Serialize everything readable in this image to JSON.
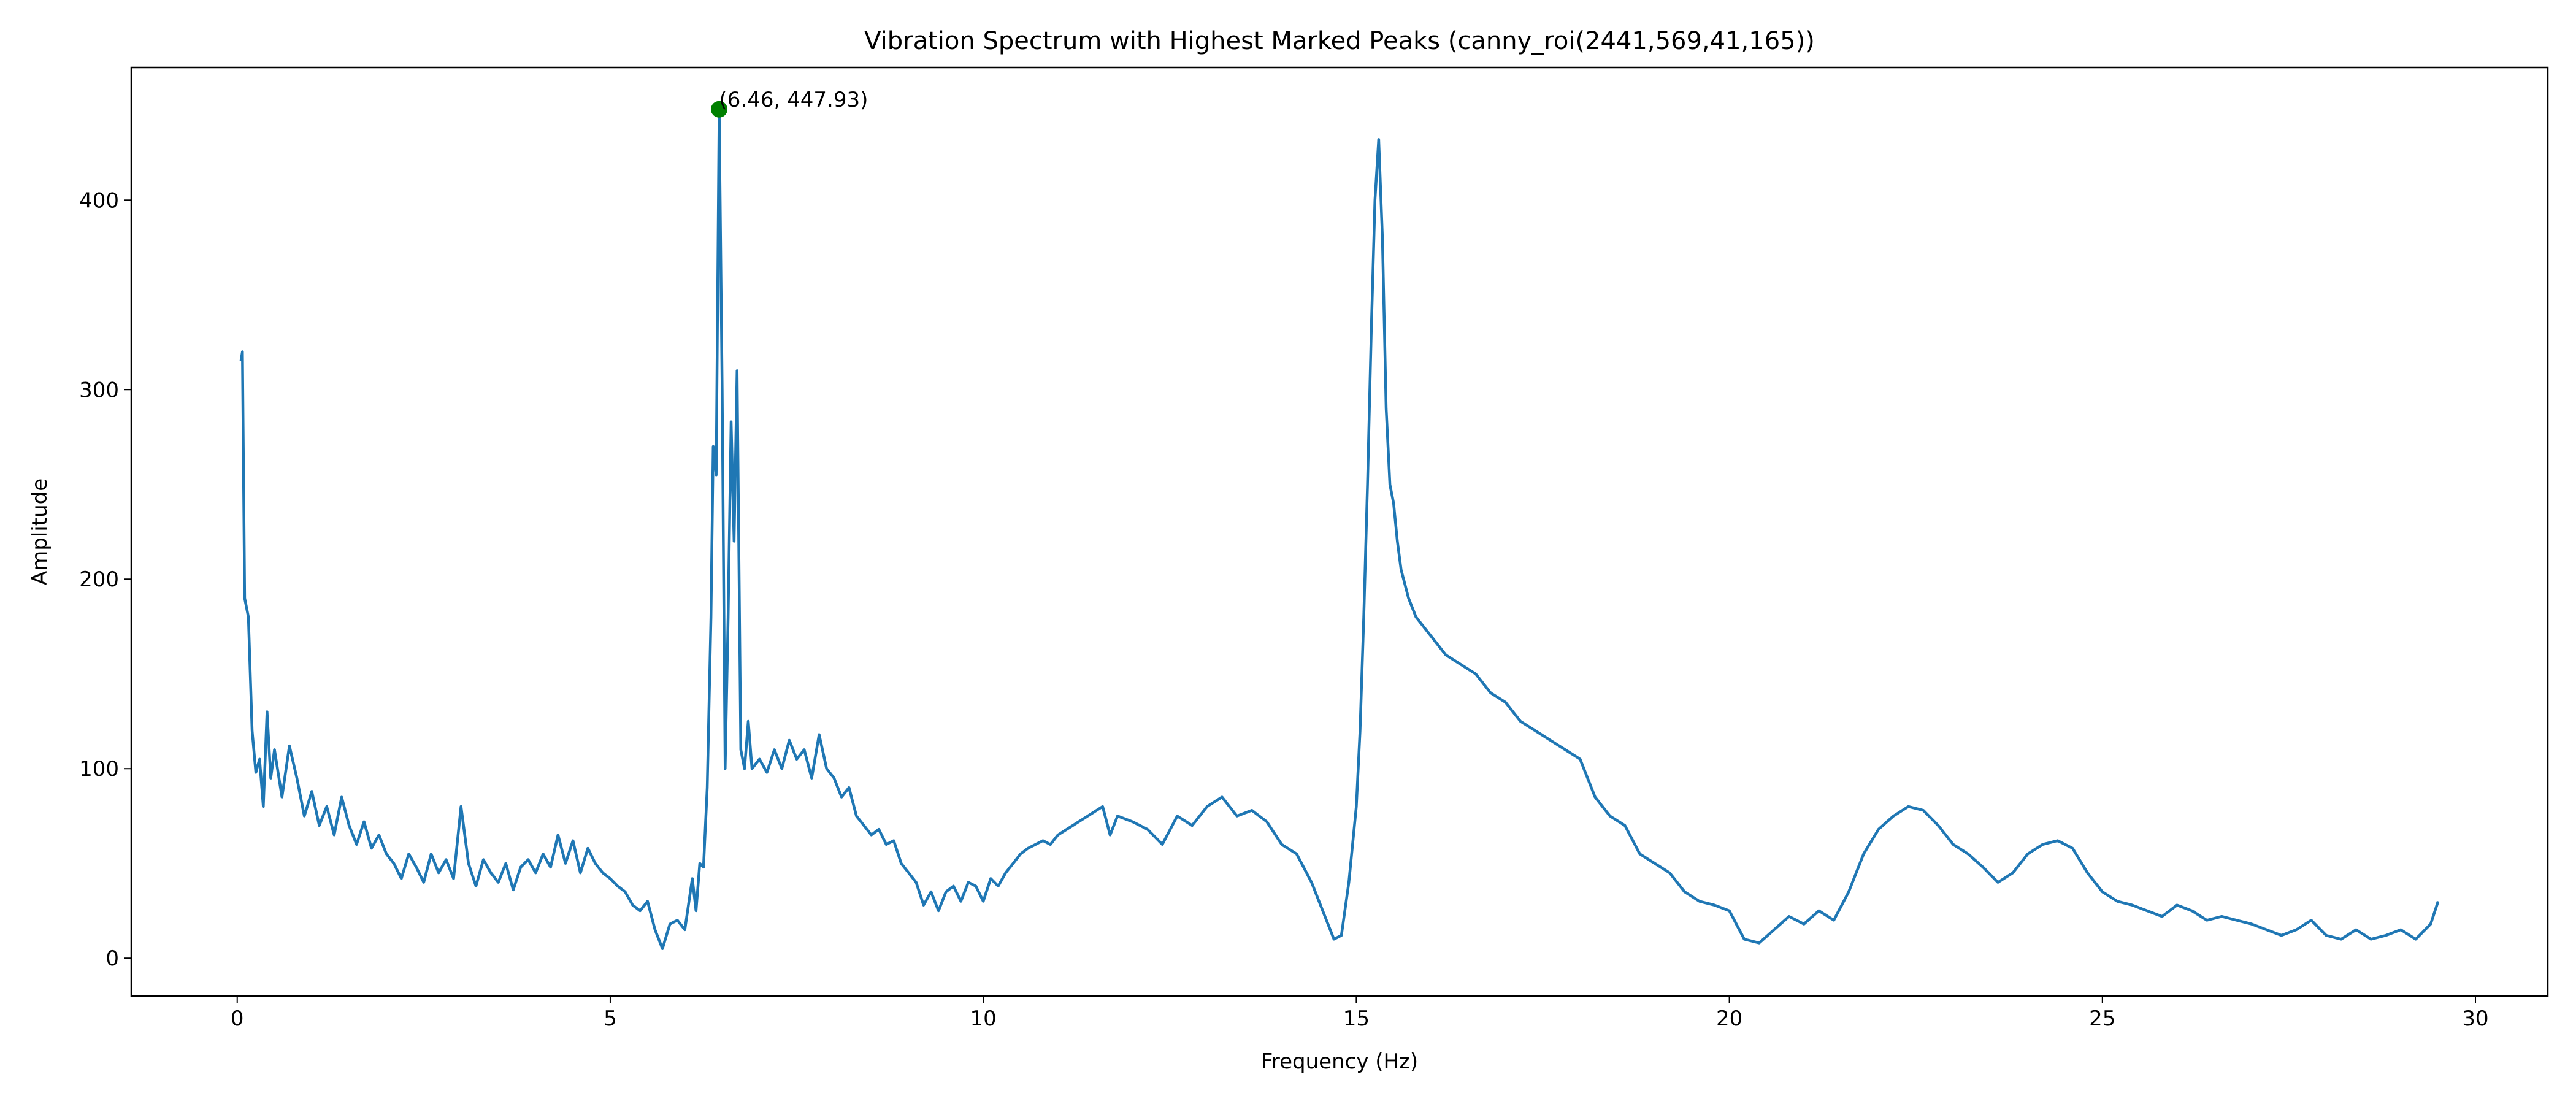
{
  "chart_data": {
    "type": "line",
    "title": "Vibration Spectrum with Highest Marked Peaks (canny_roi(2441,569,41,165))",
    "x_label": "Frequency (Hz)",
    "y_label": "Amplitude",
    "x": [
      0.05,
      0.07,
      0.1,
      0.15,
      0.2,
      0.25,
      0.3,
      0.35,
      0.4,
      0.45,
      0.5,
      0.6,
      0.7,
      0.8,
      0.9,
      1.0,
      1.1,
      1.2,
      1.3,
      1.4,
      1.5,
      1.6,
      1.7,
      1.8,
      1.9,
      2.0,
      2.1,
      2.2,
      2.3,
      2.4,
      2.5,
      2.6,
      2.7,
      2.8,
      2.9,
      3.0,
      3.1,
      3.2,
      3.3,
      3.4,
      3.5,
      3.6,
      3.7,
      3.8,
      3.9,
      4.0,
      4.1,
      4.2,
      4.3,
      4.4,
      4.5,
      4.6,
      4.7,
      4.8,
      4.9,
      5.0,
      5.1,
      5.2,
      5.3,
      5.4,
      5.5,
      5.6,
      5.7,
      5.8,
      5.9,
      6.0,
      6.1,
      6.15,
      6.2,
      6.25,
      6.3,
      6.35,
      6.38,
      6.42,
      6.46,
      6.5,
      6.54,
      6.58,
      6.62,
      6.66,
      6.7,
      6.75,
      6.8,
      6.85,
      6.9,
      7.0,
      7.1,
      7.2,
      7.3,
      7.4,
      7.5,
      7.6,
      7.7,
      7.8,
      7.9,
      8.0,
      8.1,
      8.2,
      8.3,
      8.4,
      8.5,
      8.6,
      8.7,
      8.8,
      8.9,
      9.0,
      9.1,
      9.2,
      9.3,
      9.4,
      9.5,
      9.6,
      9.7,
      9.8,
      9.9,
      10.0,
      10.1,
      10.2,
      10.3,
      10.4,
      10.5,
      10.6,
      10.7,
      10.8,
      10.9,
      11.0,
      11.2,
      11.4,
      11.6,
      11.7,
      11.8,
      12.0,
      12.2,
      12.4,
      12.6,
      12.8,
      13.0,
      13.2,
      13.4,
      13.6,
      13.8,
      14.0,
      14.2,
      14.4,
      14.5,
      14.6,
      14.7,
      14.8,
      14.9,
      15.0,
      15.05,
      15.1,
      15.15,
      15.2,
      15.25,
      15.3,
      15.35,
      15.4,
      15.45,
      15.5,
      15.55,
      15.6,
      15.7,
      15.8,
      16.0,
      16.2,
      16.4,
      16.6,
      16.8,
      17.0,
      17.2,
      17.4,
      17.6,
      17.8,
      18.0,
      18.2,
      18.4,
      18.6,
      18.8,
      19.0,
      19.2,
      19.4,
      19.6,
      19.8,
      20.0,
      20.2,
      20.4,
      20.6,
      20.8,
      21.0,
      21.2,
      21.4,
      21.6,
      21.8,
      22.0,
      22.2,
      22.4,
      22.6,
      22.8,
      23.0,
      23.2,
      23.4,
      23.6,
      23.8,
      24.0,
      24.2,
      24.4,
      24.6,
      24.8,
      25.0,
      25.2,
      25.4,
      25.6,
      25.8,
      26.0,
      26.2,
      26.4,
      26.6,
      26.8,
      27.0,
      27.2,
      27.4,
      27.6,
      27.8,
      28.0,
      28.2,
      28.4,
      28.6,
      28.8,
      29.0,
      29.2,
      29.4,
      29.5
    ],
    "series": [
      {
        "color": "#1f77b4",
        "values": [
          315,
          320,
          190,
          180,
          120,
          98,
          105,
          80,
          130,
          95,
          110,
          85,
          112,
          95,
          75,
          88,
          70,
          80,
          65,
          85,
          70,
          60,
          72,
          58,
          65,
          55,
          50,
          42,
          55,
          48,
          40,
          55,
          45,
          52,
          42,
          80,
          50,
          38,
          52,
          45,
          40,
          50,
          36,
          48,
          52,
          45,
          55,
          48,
          65,
          50,
          62,
          45,
          58,
          50,
          45,
          42,
          38,
          35,
          28,
          25,
          30,
          15,
          5,
          18,
          20,
          15,
          42,
          25,
          50,
          48,
          90,
          180,
          270,
          255,
          447.93,
          300,
          100,
          180,
          283,
          220,
          310,
          110,
          100,
          125,
          100,
          105,
          98,
          110,
          100,
          115,
          105,
          110,
          95,
          118,
          100,
          95,
          85,
          90,
          75,
          70,
          65,
          68,
          60,
          62,
          50,
          45,
          40,
          28,
          35,
          25,
          35,
          38,
          30,
          40,
          38,
          30,
          42,
          38,
          45,
          50,
          55,
          58,
          60,
          62,
          60,
          65,
          70,
          75,
          80,
          65,
          75,
          72,
          68,
          60,
          75,
          70,
          80,
          85,
          75,
          78,
          72,
          60,
          55,
          40,
          30,
          20,
          10,
          12,
          40,
          80,
          120,
          180,
          250,
          330,
          400,
          432,
          380,
          290,
          250,
          240,
          220,
          205,
          190,
          180,
          170,
          160,
          155,
          150,
          140,
          135,
          125,
          120,
          115,
          110,
          105,
          85,
          75,
          70,
          55,
          50,
          45,
          35,
          30,
          28,
          25,
          10,
          8,
          15,
          22,
          18,
          25,
          20,
          35,
          55,
          68,
          75,
          80,
          78,
          70,
          60,
          55,
          48,
          40,
          45,
          55,
          60,
          62,
          58,
          45,
          35,
          30,
          28,
          25,
          22,
          28,
          25,
          20,
          22,
          20,
          18,
          15,
          12,
          15,
          20,
          12,
          10,
          15,
          10,
          12,
          15,
          10,
          18,
          30
        ]
      }
    ],
    "annotation": {
      "x": 6.46,
      "y": 447.93,
      "text": "(6.46, 447.93)",
      "color": "green"
    },
    "xlim": [
      -1.42,
      30.97
    ],
    "ylim": [
      -20,
      470
    ],
    "xticks": [
      0,
      5,
      10,
      15,
      20,
      25,
      30
    ],
    "yticks": [
      0,
      100,
      200,
      300,
      400
    ],
    "grid": false
  }
}
